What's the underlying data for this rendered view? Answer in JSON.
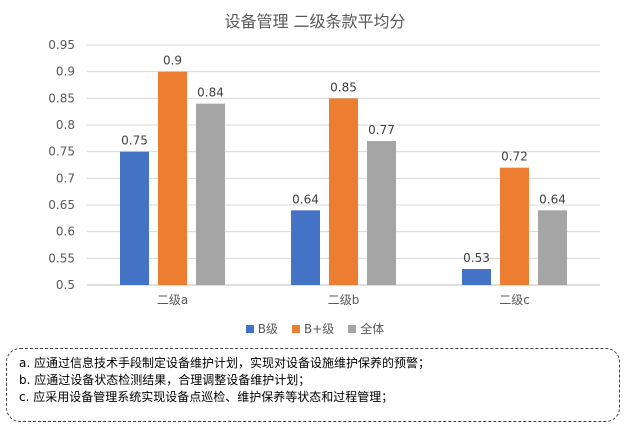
{
  "chart_data": {
    "type": "bar",
    "title": "设备管理 二级条款平均分",
    "categories": [
      "二级a",
      "二级b",
      "二级c"
    ],
    "series": [
      {
        "name": "B级",
        "color": "#4472C4",
        "values": [
          0.75,
          0.64,
          0.53
        ],
        "labels": [
          "0.75",
          "0.64",
          "0.53"
        ]
      },
      {
        "name": "B+级",
        "color": "#ED7D31",
        "values": [
          0.9,
          0.85,
          0.72
        ],
        "labels": [
          "0.9",
          "0.85",
          "0.72"
        ]
      },
      {
        "name": "全体",
        "color": "#A5A5A5",
        "values": [
          0.84,
          0.77,
          0.64
        ],
        "labels": [
          "0.84",
          "0.77",
          "0.64"
        ]
      }
    ],
    "ylim": [
      0.5,
      0.95
    ],
    "yticks": [
      "0.5",
      "0.55",
      "0.6",
      "0.65",
      "0.7",
      "0.75",
      "0.8",
      "0.85",
      "0.9",
      "0.95"
    ],
    "grid": true,
    "legend": "bottom",
    "xlabel": "",
    "ylabel": ""
  },
  "notes": [
    "a. 应通过信息技术手段制定设备维护计划，实现对设备设施维护保养的预警；",
    "b. 应通过设备状态检测结果，合理调整设备维护计划；",
    "c. 应采用设备管理系统实现设备点巡检、维护保养等状态和过程管理；"
  ]
}
